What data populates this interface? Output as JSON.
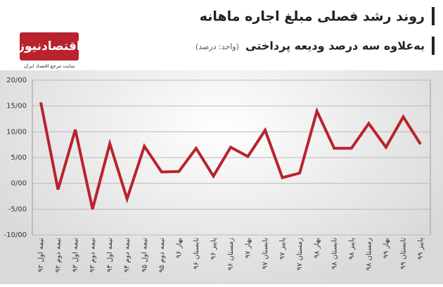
{
  "brand": {
    "name": "اقتصادنیوز",
    "tagline": "سایت مرجع اقتصاد ایران"
  },
  "chart_data": {
    "type": "line",
    "title": "روند رشد فصلی مبلغ اجاره ماهانه",
    "subtitle": "به‌علاوه سه درصد ودیعه پرداختی",
    "unit_note": "(واحد: درصد)",
    "categories": [
      "نیمه اول ۹۲",
      "نیمه دوم ۹۲",
      "نیمه اول ۹۳",
      "نیمه دوم ۹۳",
      "نیمه اول ۹۴",
      "نیمه دوم ۹۴",
      "نیمه اول ۹۵",
      "نیمه دوم ۹۵",
      "بهار ۹۶",
      "تابستان ۹۶",
      "پاییز ۹۶",
      "زمستان ۹۶",
      "بهار ۹۷",
      "تابستان ۹۷",
      "پاییز ۹۷",
      "زمستان ۹۷",
      "بهار ۹۸",
      "تابستان ۹۸",
      "پاییز ۹۸",
      "زمستان ۹۸",
      "بهار ۹۹",
      "تابستان ۹۹",
      "پاییز ۹۹"
    ],
    "values": [
      15.7,
      -1.2,
      10.4,
      -5,
      7.7,
      -3,
      7.2,
      2.2,
      2.3,
      6.8,
      1.4,
      7,
      5.2,
      10.3,
      1.1,
      2,
      14,
      6.8,
      6.8,
      11.6,
      7,
      12.9,
      7.6
    ],
    "color": "#b8232e",
    "ylim": [
      -10,
      20
    ],
    "yticks": [
      {
        "value": -10,
        "label": "-10/00"
      },
      {
        "value": -5,
        "label": "-5/00"
      },
      {
        "value": 0,
        "label": "0/00"
      },
      {
        "value": 5,
        "label": "5/00"
      },
      {
        "value": 10,
        "label": "10/00"
      },
      {
        "value": 15,
        "label": "15/00"
      },
      {
        "value": 20,
        "label": "20/00"
      }
    ],
    "grid": true
  }
}
